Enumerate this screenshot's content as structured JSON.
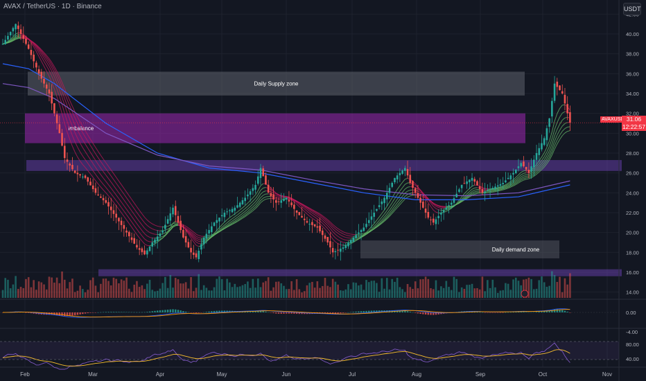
{
  "header": {
    "title": "AVAX / TetherUS · 1D · Binance",
    "currency_button": "USDT"
  },
  "price_badge": {
    "symbol": "AVAXUSDT",
    "price": "31.06",
    "countdown": "12:22:57"
  },
  "colors": {
    "background": "#131722",
    "up": "#26a69a",
    "down": "#ef5350",
    "supply_zone": "#4a4d58",
    "imbalance": "#9c27b0",
    "purple_zone": "#6a3fb0",
    "ma_blue": "#2962ff",
    "ma_purple": "#7e57c2",
    "price_tag": "#f23645"
  },
  "chart_data": {
    "type": "candlestick",
    "symbol": "AVAX / TetherUS",
    "timeframe": "1D",
    "exchange": "Binance",
    "y_ticks": [
      "42.00",
      "40.00",
      "38.00",
      "36.00",
      "34.00",
      "32.00",
      "30.00",
      "28.00",
      "26.00",
      "24.00",
      "22.00",
      "20.00",
      "18.00",
      "16.00",
      "14.00"
    ],
    "ylim": [
      13,
      43
    ],
    "x_ticks": [
      "Feb",
      "Mar",
      "Apr",
      "May",
      "Jun",
      "Jul",
      "Aug",
      "Sep",
      "Oct",
      "Nov"
    ],
    "zones": [
      {
        "label": "Daily Supply zone",
        "low": 33.8,
        "high": 36.2,
        "type": "supply"
      },
      {
        "label": "imbalance",
        "low": 29.0,
        "high": 32.0,
        "type": "imbalance"
      },
      {
        "label": "",
        "low": 26.2,
        "high": 27.3,
        "type": "purple"
      },
      {
        "label": "Daily demand zone",
        "low": 17.4,
        "high": 19.2,
        "type": "demand"
      },
      {
        "label": "",
        "low": 15.6,
        "high": 16.3,
        "type": "purple"
      }
    ],
    "close_path": [
      [
        0,
        39
      ],
      [
        5,
        41
      ],
      [
        10,
        38.5
      ],
      [
        14,
        36
      ],
      [
        18,
        34
      ],
      [
        22,
        30
      ],
      [
        24,
        27.5
      ],
      [
        28,
        26
      ],
      [
        32,
        25.5
      ],
      [
        36,
        24
      ],
      [
        40,
        23
      ],
      [
        44,
        21.5
      ],
      [
        48,
        20
      ],
      [
        52,
        18.5
      ],
      [
        55,
        17.8
      ],
      [
        58,
        19
      ],
      [
        62,
        20.2
      ],
      [
        66,
        22.5
      ],
      [
        68,
        21
      ],
      [
        70,
        19.5
      ],
      [
        73,
        18
      ],
      [
        75,
        17.5
      ],
      [
        78,
        19.5
      ],
      [
        82,
        21
      ],
      [
        86,
        22
      ],
      [
        90,
        22.5
      ],
      [
        94,
        23.5
      ],
      [
        98,
        24.8
      ],
      [
        100,
        26.5
      ],
      [
        103,
        24
      ],
      [
        106,
        23
      ],
      [
        110,
        23.5
      ],
      [
        114,
        22
      ],
      [
        118,
        21
      ],
      [
        122,
        20.5
      ],
      [
        126,
        19
      ],
      [
        128,
        18
      ],
      [
        132,
        18.5
      ],
      [
        136,
        19.5
      ],
      [
        140,
        20.5
      ],
      [
        144,
        22
      ],
      [
        148,
        23.5
      ],
      [
        152,
        25.5
      ],
      [
        156,
        26.5
      ],
      [
        158,
        25
      ],
      [
        162,
        23
      ],
      [
        165,
        21.5
      ],
      [
        167,
        21
      ],
      [
        170,
        22
      ],
      [
        174,
        23
      ],
      [
        178,
        24.8
      ],
      [
        182,
        25.5
      ],
      [
        186,
        24
      ],
      [
        190,
        24.5
      ],
      [
        194,
        25
      ],
      [
        198,
        26
      ],
      [
        201,
        27
      ],
      [
        204,
        26
      ],
      [
        207,
        28
      ],
      [
        210,
        29.5
      ],
      [
        212,
        31.5
      ],
      [
        214,
        35
      ],
      [
        217,
        34
      ],
      [
        219,
        32
      ],
      [
        220,
        31.06
      ]
    ],
    "ma_lines": [
      {
        "name": "",
        "color": "#2962ff",
        "points": [
          [
            0,
            37
          ],
          [
            10,
            36.5
          ],
          [
            20,
            35
          ],
          [
            40,
            31
          ],
          [
            60,
            28
          ],
          [
            80,
            26.5
          ],
          [
            100,
            26
          ],
          [
            120,
            25
          ],
          [
            140,
            24
          ],
          [
            160,
            23.3
          ],
          [
            180,
            23.3
          ],
          [
            200,
            23.6
          ],
          [
            220,
            24.8
          ]
        ]
      },
      {
        "name": "",
        "color": "#7e57c2",
        "points": [
          [
            0,
            35
          ],
          [
            10,
            34.6
          ],
          [
            20,
            33.5
          ],
          [
            40,
            30
          ],
          [
            60,
            27.8
          ],
          [
            80,
            26.7
          ],
          [
            100,
            26.3
          ],
          [
            120,
            25.3
          ],
          [
            140,
            24.4
          ],
          [
            160,
            23.8
          ],
          [
            180,
            23.7
          ],
          [
            200,
            24
          ],
          [
            220,
            25.2
          ]
        ]
      }
    ],
    "last_price": 31.06
  },
  "macd_panel": {
    "ticks": [
      "0.00",
      "-4.00"
    ]
  },
  "rsi_panel": {
    "ticks": [
      "80.00",
      "40.00"
    ]
  }
}
